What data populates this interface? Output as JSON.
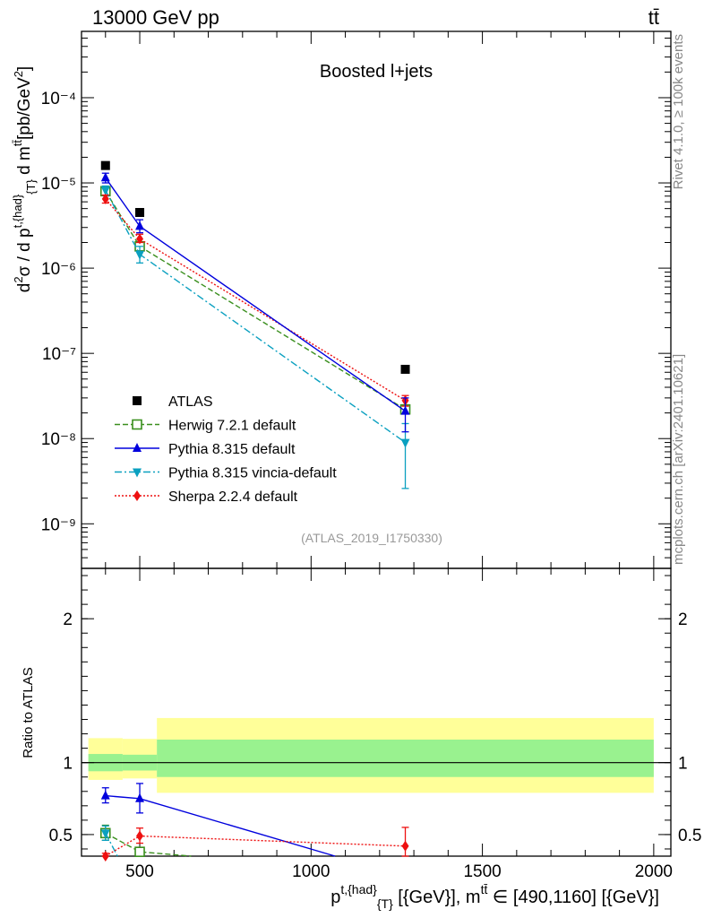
{
  "header": {
    "left": "13000 GeV pp",
    "right": "tt̄"
  },
  "side_labels": {
    "rivet": "Rivet 4.1.0, ≥ 100k events",
    "mcplots": "mcplots.cern.ch [arXiv:2401.10621]"
  },
  "chart_data": [
    {
      "type": "scatter",
      "title": "Boosted l+jets",
      "watermark": "(ATLAS_2019_I1750330)",
      "ylabel": "d²σ / d p^{t,{had}}_{T} d m^{tt̄} [pb/GeV²]",
      "yscale": "log",
      "ylim": [
        3e-10,
        0.0006
      ],
      "xlim": [
        330,
        2050
      ],
      "yticks": [
        {
          "value": 1e-09,
          "label": "10⁻⁹"
        },
        {
          "value": 1e-08,
          "label": "10⁻⁸"
        },
        {
          "value": 1e-07,
          "label": "10⁻⁷"
        },
        {
          "value": 1e-06,
          "label": "10⁻⁶"
        },
        {
          "value": 1e-05,
          "label": "10⁻⁵"
        },
        {
          "value": 0.0001,
          "label": "10⁻⁴"
        }
      ],
      "legend_position": "bottom-left",
      "series": [
        {
          "name": "ATLAS",
          "color": "#000000",
          "marker": "square-filled",
          "line": "none",
          "x": [
            400,
            500,
            1275
          ],
          "y": [
            1.6e-05,
            4.5e-06,
            6.5e-08
          ],
          "ylow": [],
          "yhigh": []
        },
        {
          "name": "Herwig 7.2.1 default",
          "color": "#3a8f1e",
          "marker": "square-open",
          "line": "dashed",
          "x": [
            400,
            500,
            1275
          ],
          "y": [
            8e-06,
            1.8e-06,
            2.2e-08
          ]
        },
        {
          "name": "Pythia 8.315 default",
          "color": "#0000dd",
          "marker": "triangle-up",
          "line": "solid",
          "x": [
            400,
            500,
            1275
          ],
          "y": [
            1.15e-05,
            3.1e-06,
            2.1e-08
          ],
          "err_low": [
            1e-05,
            2.6e-06,
            1.2e-08
          ],
          "err_high": [
            1.3e-05,
            3.7e-06,
            3e-08
          ]
        },
        {
          "name": "Pythia 8.315 vincia-default",
          "color": "#0aa0c0",
          "marker": "triangle-down",
          "line": "dashdot",
          "x": [
            400,
            500,
            1275
          ],
          "y": [
            8.2e-06,
            1.45e-06,
            9e-09
          ],
          "err_low": [
            7.2e-06,
            1.15e-06,
            2.6e-09
          ],
          "err_high": [
            9.2e-06,
            1.8e-06,
            1.5e-08
          ]
        },
        {
          "name": "Sherpa 2.2.4 default",
          "color": "#ee1010",
          "marker": "diamond",
          "line": "dotted",
          "x": [
            400,
            500,
            1275
          ],
          "y": [
            6.5e-06,
            2.2e-06,
            2.8e-08
          ],
          "err_low": [
            5.8e-06,
            2e-06,
            2.4e-08
          ],
          "err_high": [
            7.2e-06,
            2.5e-06,
            3.2e-08
          ]
        }
      ]
    },
    {
      "type": "scatter",
      "ylabel": "Ratio to ATLAS",
      "xlabel": "p^{t,{had}}_{T} [{GeV}], m^{tt̄} ∈ [490,1160] [{GeV}]",
      "ylim": [
        0.35,
        2.35
      ],
      "xlim": [
        330,
        2050
      ],
      "xticks": [
        500,
        1000,
        1500,
        2000
      ],
      "yticks": [
        {
          "value": 0.5,
          "label": "0.5"
        },
        {
          "value": 1,
          "label": "1"
        },
        {
          "value": 2,
          "label": "2"
        }
      ],
      "bands": [
        {
          "x0": 350,
          "x1": 450,
          "inner": [
            0.94,
            1.06
          ],
          "outer": [
            0.88,
            1.17
          ]
        },
        {
          "x0": 450,
          "x1": 550,
          "inner": [
            0.945,
            1.055
          ],
          "outer": [
            0.89,
            1.165
          ]
        },
        {
          "x0": 550,
          "x1": 2000,
          "inner": [
            0.9,
            1.16
          ],
          "outer": [
            0.79,
            1.31
          ]
        }
      ],
      "band_colors": {
        "inner": "#99f28f",
        "outer": "#ffff99"
      },
      "series": [
        {
          "name": "Herwig 7.2.1 default",
          "color": "#3a8f1e",
          "marker": "square-open",
          "line": "dashed",
          "x": [
            400,
            500,
            650
          ],
          "y": [
            0.51,
            0.38,
            0.35
          ],
          "err_low": [
            0.46,
            0.38,
            0.35
          ],
          "err_high": [
            0.565,
            0.38,
            0.35
          ],
          "markers": [
            true,
            true,
            false
          ]
        },
        {
          "name": "Pythia 8.315 default",
          "color": "#0000dd",
          "marker": "triangle-up",
          "line": "solid",
          "x": [
            400,
            500,
            1070
          ],
          "y": [
            0.77,
            0.75,
            0.35
          ],
          "err_low": [
            0.72,
            0.65,
            0.35
          ],
          "err_high": [
            0.825,
            0.855,
            0.35
          ],
          "markers": [
            true,
            true,
            false
          ]
        },
        {
          "name": "Pythia 8.315 vincia-default",
          "color": "#0aa0c0",
          "marker": "triangle-down",
          "line": "dashdot",
          "x": [
            400,
            435
          ],
          "y": [
            0.51,
            0.35
          ],
          "err_low": [
            0.46,
            0.35
          ],
          "err_high": [
            0.56,
            0.35
          ],
          "markers": [
            true,
            false
          ]
        },
        {
          "name": "Sherpa 2.2.4 default",
          "color": "#ee1010",
          "marker": "diamond",
          "line": "dotted",
          "x": [
            400,
            500,
            1275
          ],
          "y": [
            0.35,
            0.49,
            0.42
          ],
          "err_low": [
            0.35,
            0.44,
            0.35
          ],
          "err_high": [
            0.37,
            0.545,
            0.55
          ],
          "markers": [
            true,
            true,
            true
          ]
        }
      ]
    }
  ]
}
